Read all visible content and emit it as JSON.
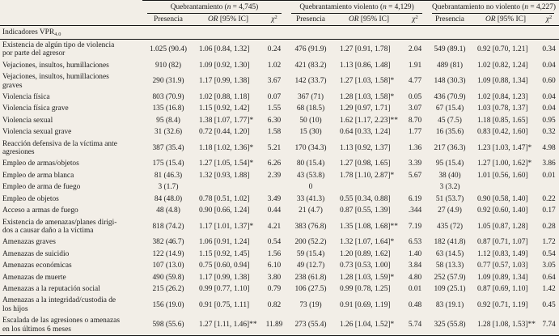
{
  "colors": {
    "page_background": "#f2eee7",
    "rule": "#151515",
    "text": "#1b1b1b"
  },
  "table": {
    "row_header": {
      "text": "Indicadores VPR",
      "subscript": "4.0"
    },
    "groups": [
      {
        "label_pre": "Quebrantamiento (",
        "n_italic": "n",
        "label_post": " = 4,745)"
      },
      {
        "label_pre": "Quebrantamiento violento (",
        "n_italic": "n",
        "label_post": " = 4,129)"
      },
      {
        "label_pre": "Quebrantamiento no violento (",
        "n_italic": "n",
        "label_post": " = 4,227)"
      }
    ],
    "subheaders": {
      "presencia": "Presencia",
      "or_italic": "OR",
      "or_rest": " [95% IC]",
      "chi_italic": "χ",
      "chi_sup": "2"
    },
    "rows": [
      {
        "label_lines": [
          "Existencia de algún tipo de violencia",
          "por parte del agresor"
        ],
        "cells": [
          "1.025 (90.4)",
          "1.06 [0.84, 1.32]",
          "0.24",
          "476 (91.9)",
          "1.27 [0.91, 1.78]",
          "2.04",
          "549 (89.1)",
          "0.92 [0.70, 1.21]",
          "0.34"
        ]
      },
      {
        "label_lines": [
          "Vejaciones, insultos, humillaciones"
        ],
        "cells": [
          "910 (82)",
          "1.09 [0.92, 1.30]",
          "1.02",
          "421 (83.2)",
          "1.13 [0.86, 1.48]",
          "1.91",
          "489 (81)",
          "1.02 [0.82, 1.24]",
          "0.04"
        ]
      },
      {
        "label_lines": [
          "Vejaciones, insultos, humillaciones",
          "graves"
        ],
        "cells": [
          "290 (31.9)",
          "1.17 [0.99, 1.38]",
          "3.67",
          "142 (33.7)",
          "1.27 [1.03, 1.58]*",
          "4.77",
          "148 (30.3)",
          "1.09 [0.88, 1.34]",
          "0.60"
        ]
      },
      {
        "label_lines": [
          "Violencia física"
        ],
        "cells": [
          "803 (70.9)",
          "1.02 [0.88, 1.18]",
          "0.07",
          "367 (71)",
          "1.28 [1.03, 1.58]*",
          "0.05",
          "436 (70.9)",
          "1.02 [0.84, 1.23]",
          "0.04"
        ]
      },
      {
        "label_lines": [
          "Violencia física grave"
        ],
        "cells": [
          "135 (16.8)",
          "1.15 [0.92, 1.42]",
          "1.55",
          "68 (18.5)",
          "1.29 [0.97, 1.71]",
          "3.07",
          "67 (15.4)",
          "1.03 [0.78, 1.37]",
          "0.04"
        ]
      },
      {
        "label_lines": [
          "Violencia sexual"
        ],
        "cells": [
          "95 (8.4)",
          "1.38 [1.07, 1.77]*",
          "6.30",
          "50 (10)",
          "1.62 [1.17, 2.23]**",
          "8.70",
          "45 (7.5)",
          "1.18 [0.85, 1.65]",
          "0.95"
        ]
      },
      {
        "label_lines": [
          "Violencia sexual grave"
        ],
        "cells": [
          "31 (32.6)",
          "0.72 [0.44, 1.20]",
          "1.58",
          "15 (30)",
          "0.64 [0.33, 1.24]",
          "1.77",
          "16 (35.6)",
          "0.83 [0.42, 1.60]",
          "0.32"
        ]
      },
      {
        "label_lines": [
          "Reacción defensiva de la víctima ante",
          "agresiones"
        ],
        "cells": [
          "387 (35.4)",
          "1.18 [1.02, 1.36]*",
          "5.21",
          "170 (34.3)",
          "1.13 [0.92, 1.37]",
          "1.36",
          "217 (36.3)",
          "1.23 [1.03, 1.47]*",
          "4.98"
        ]
      },
      {
        "label_lines": [
          "Empleo de armas/objetos"
        ],
        "cells": [
          "175 (15.4)",
          "1.27 [1.05, 1.54]*",
          "6.26",
          "80 (15.4)",
          "1.27 [0.98, 1.65]",
          "3.39",
          "95 (15.4)",
          "1.27 [1.00, 1.62]*",
          "3.86"
        ]
      },
      {
        "label_lines": [
          "Empleo de arma blanca"
        ],
        "cells": [
          "81 (46.3)",
          "1.32 [0.93, 1.88]",
          "2.39",
          "43 (53.8)",
          "1.78 [1.10, 2.87]*",
          "5.67",
          "38 (40)",
          "1.01 [0.56, 1.60]",
          "0.01"
        ]
      },
      {
        "label_lines": [
          "Empleo de arma de fuego"
        ],
        "cells": [
          "3 (1.7)",
          "",
          "",
          "0",
          "",
          "",
          "3 (3.2)",
          "",
          ""
        ]
      },
      {
        "label_lines": [
          "Empleo de objetos"
        ],
        "cells": [
          "84 (48.0)",
          "0.78 [0.51, 1.02]",
          "3.49",
          "33 (41.3)",
          "0.55 [0.34, 0.88]",
          "6.19",
          "51 (53.7)",
          "0.90 [0.58, 1.40]",
          "0.22"
        ]
      },
      {
        "label_lines": [
          "Acceso a armas de fuego"
        ],
        "cells": [
          "48 (4.8)",
          "0.90 [0.66, 1.24]",
          "0.44",
          "21 (4.7)",
          "0.87 [0.55, 1.39]",
          ".344",
          "27 (4.9)",
          "0.92 [0.60, 1.40]",
          "0.17"
        ]
      },
      {
        "label_lines": [
          "Existencia de amenazas/planes dirigi-",
          "dos a causar daño a la víctima"
        ],
        "cells": [
          "818 (74.2)",
          "1.17 [1.01, 1.37]*",
          "4.21",
          "383 (76.8)",
          "1.35 [1.08, 1.68]**",
          "7.19",
          "435 (72)",
          "1.05 [0.87, 1.28]",
          "0.28"
        ]
      },
      {
        "label_lines": [
          "Amenazas graves"
        ],
        "cells": [
          "382 (46.7)",
          "1.06 [0.91, 1.24]",
          "0.54",
          "200 (52.2)",
          "1.32 [1.07, 1.64]*",
          "6.53",
          "182 (41.8)",
          "0.87 [0.71, 1.07]",
          "1.72"
        ]
      },
      {
        "label_lines": [
          "Amenazas de suicidio"
        ],
        "cells": [
          "122 (14.9)",
          "1.15 [0.92, 1.45]",
          "1.56",
          "59 (15.4)",
          "1.20 [0.89, 1.62]",
          "1.40",
          "63 (14.5)",
          "1.12 [0.83, 1.49]",
          "0.54"
        ]
      },
      {
        "label_lines": [
          "Amenazas económicas"
        ],
        "cells": [
          "107 (13.0)",
          "0.75 [0.60, 0.94]",
          "6.10",
          "49 (12.7)",
          "0.73 [0.53, 1.00]",
          "3.84",
          "58 (13.3)",
          "0.77 [0.57, 1.03]",
          "3.05"
        ]
      },
      {
        "label_lines": [
          "Amenazas de muerte"
        ],
        "cells": [
          "490 (59.8)",
          "1.17 [0.99, 1.38]",
          "3.80",
          "238 (61.8)",
          "1.28 [1.03, 1.59]*",
          "4.80",
          "252 (57.9)",
          "1.09 [0.89, 1.34]",
          "0.64"
        ]
      },
      {
        "label_lines": [
          "Amenazas a la reputación social"
        ],
        "cells": [
          "215 (26.2)",
          "0.99 [0.77, 1.10]",
          "0.79",
          "106 (27.5)",
          "0.99 [0.78, 1.25]",
          "0.01",
          "109 (25.1)",
          "0.87 [0.69, 1.10]",
          "1.42"
        ]
      },
      {
        "label_lines": [
          "Amenazas a la integridad/custodia de",
          "los hijos"
        ],
        "cells": [
          "156 (19.0)",
          "0.91 [0.75, 1.11]",
          "0.82",
          "73 (19)",
          "0.91 [0.69, 1.19]",
          "0.48",
          "83 (19.1)",
          "0.92 [0.71, 1.19]",
          "0.45"
        ]
      },
      {
        "label_lines": [
          "Escalada de las agresiones o amenazas",
          "en los últimos 6 meses"
        ],
        "cells": [
          "598 (55.6)",
          "1.27 [1.11, 1.46]**",
          "11.89",
          "273 (55.4)",
          "1.26 [1.04, 1.52]*",
          "5.74",
          "325 (55.8)",
          "1.28 [1.08, 1.53]**",
          "7.74"
        ]
      }
    ]
  }
}
